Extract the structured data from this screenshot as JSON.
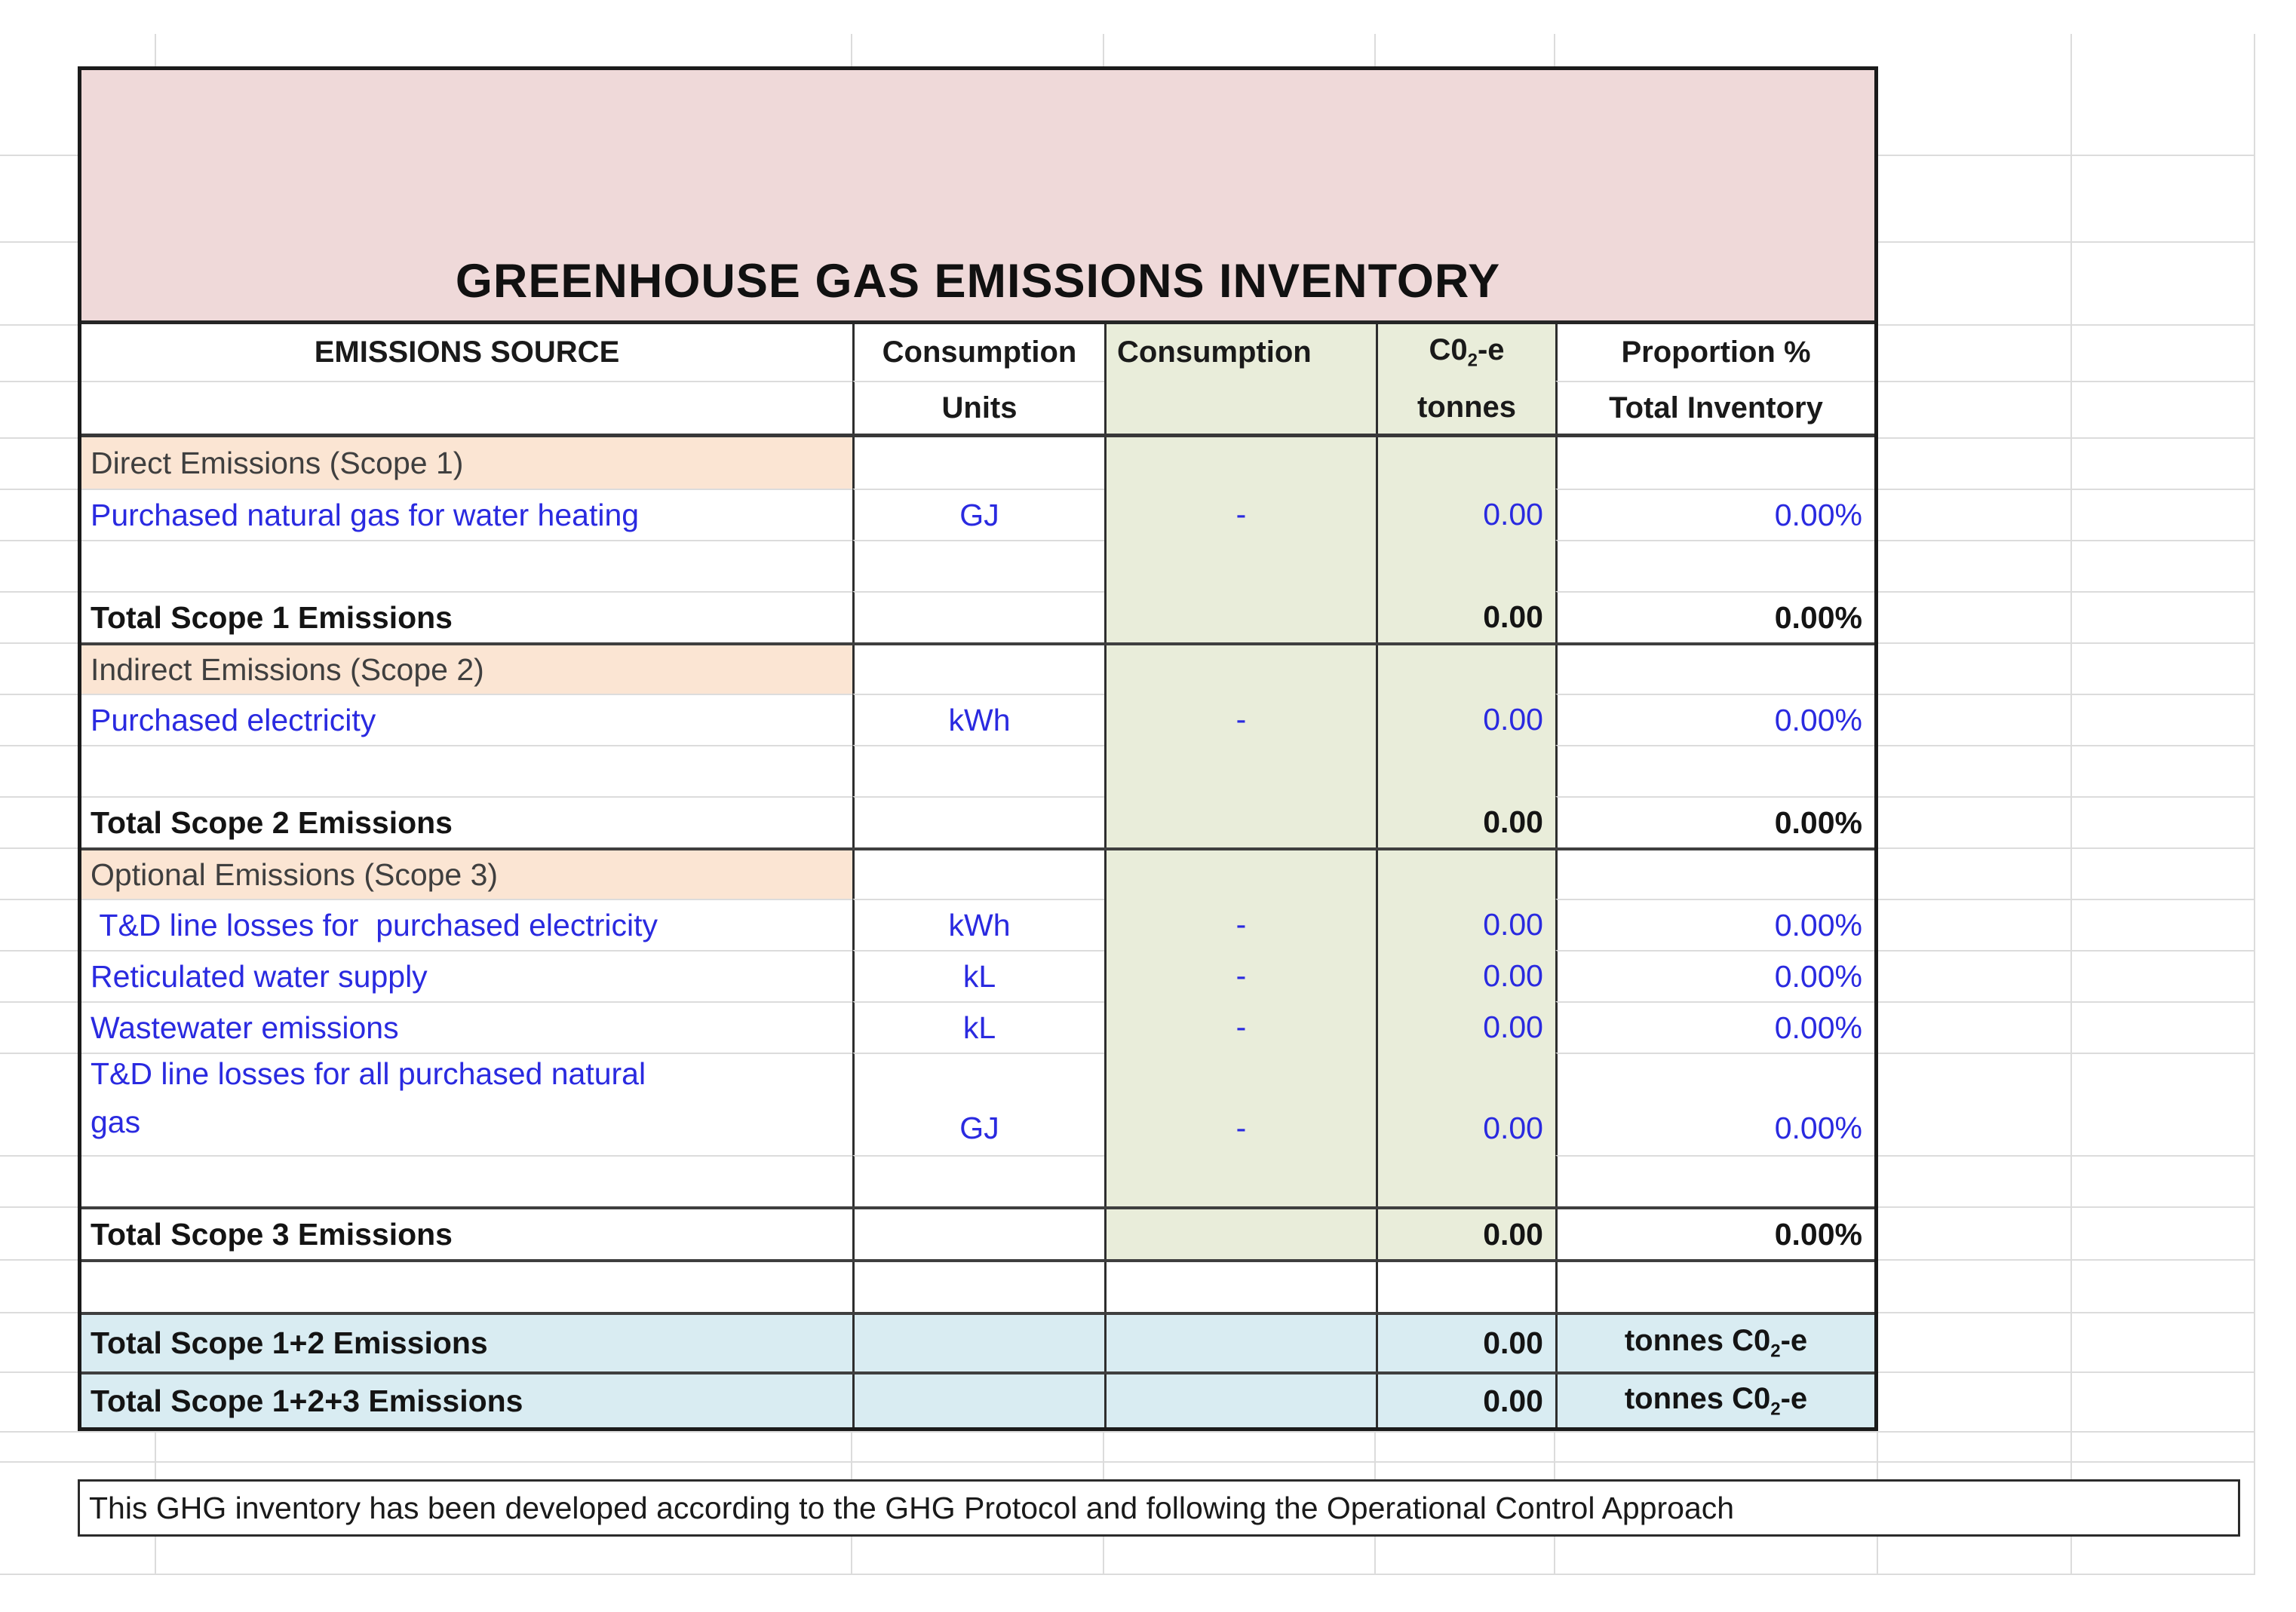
{
  "title": "GREENHOUSE GAS EMISSIONS INVENTORY",
  "header": {
    "col1": "EMISSIONS SOURCE",
    "col2_line1": "Consumption",
    "col2_line2": "Units",
    "col3": "Consumption",
    "col4_pre": "C0",
    "col4_sub": "2",
    "col4_suf": "-e",
    "col4_line2": "tonnes",
    "col5_line1": "Proportion %",
    "col5_line2": "Total Inventory"
  },
  "units_co2e": {
    "pre": "tonnes C0",
    "sub": "2",
    "suf": "-e"
  },
  "rows": [
    {
      "type": "section",
      "label": "Direct Emissions (Scope 1)"
    },
    {
      "type": "item",
      "label": "Purchased natural gas for water heating",
      "units": "GJ",
      "consumption": "-",
      "co2": "0.00",
      "proportion": "0.00%"
    },
    {
      "type": "spacer"
    },
    {
      "type": "total",
      "label": "Total Scope 1 Emissions",
      "co2": "0.00",
      "proportion": "0.00%"
    },
    {
      "type": "section",
      "label": "Indirect Emissions (Scope 2)"
    },
    {
      "type": "item",
      "label": "Purchased electricity",
      "units": "kWh",
      "consumption": "-",
      "co2": "0.00",
      "proportion": "0.00%"
    },
    {
      "type": "spacer"
    },
    {
      "type": "total",
      "label": "Total Scope 2 Emissions",
      "co2": "0.00",
      "proportion": "0.00%"
    },
    {
      "type": "section",
      "label": "Optional Emissions (Scope 3)"
    },
    {
      "type": "item",
      "label": " T&D line losses for  purchased electricity",
      "units": "kWh",
      "consumption": "-",
      "co2": "0.00",
      "proportion": "0.00%"
    },
    {
      "type": "item",
      "label": "Reticulated water supply",
      "units": "kL",
      "consumption": "-",
      "co2": "0.00",
      "proportion": "0.00%"
    },
    {
      "type": "item",
      "label": "Wastewater emissions",
      "units": "kL",
      "consumption": "-",
      "co2": "0.00",
      "proportion": "0.00%"
    },
    {
      "type": "item",
      "label": "T&D line losses for all purchased natural\ngas",
      "units": "GJ",
      "consumption": "-",
      "co2": "0.00",
      "proportion": "0.00%"
    },
    {
      "type": "spacer"
    },
    {
      "type": "total",
      "label": "Total Scope 3 Emissions",
      "co2": "0.00",
      "proportion": "0.00%"
    },
    {
      "type": "gap"
    },
    {
      "type": "grand",
      "label": "Total Scope 1+2 Emissions",
      "co2": "0.00"
    },
    {
      "type": "grand",
      "label": "Total Scope 1+2+3 Emissions",
      "co2": "0.00"
    }
  ],
  "footer_note": "This GHG inventory has been developed according to the GHG Protocol and following the Operational Control Approach",
  "colors": {
    "title_fill": "#efd9d9",
    "section_fill": "#fbe5d3",
    "calc_column_fill": "#e9edda",
    "grand_total_fill": "#d9ecf2",
    "input_text": "#2a2ae0",
    "gridline": "#dcdcdc"
  }
}
